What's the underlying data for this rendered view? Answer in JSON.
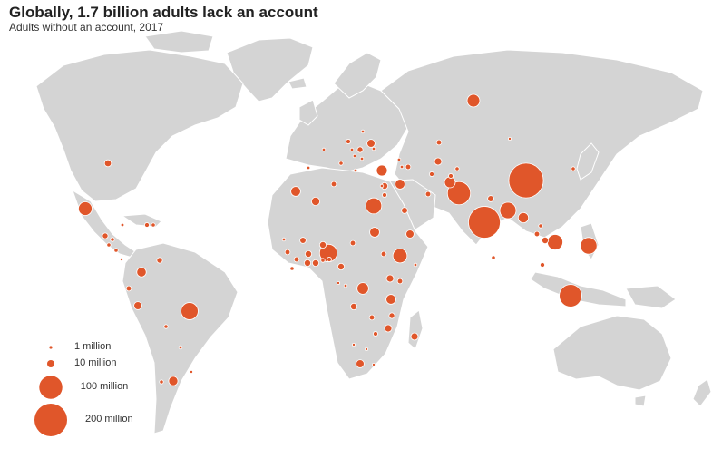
{
  "title": "Globally, 1.7 billion adults lack an account",
  "subtitle": "Adults without an account, 2017",
  "colors": {
    "bubble": "#e0562a",
    "land": "#d4d4d4",
    "bubble_stroke": "#ffffff"
  },
  "legend": [
    {
      "label": "1 million",
      "value": 1
    },
    {
      "label": "10 million",
      "value": 10
    },
    {
      "label": "100 million",
      "value": 100
    },
    {
      "label": "200 million",
      "value": 200
    }
  ],
  "bubbles": [
    {
      "region": "United States",
      "value": 9
    },
    {
      "region": "Mexico",
      "value": 35
    },
    {
      "region": "Guatemala",
      "value": 6
    },
    {
      "region": "Honduras",
      "value": 3
    },
    {
      "region": "El Salvador",
      "value": 3
    },
    {
      "region": "Nicaragua",
      "value": 3
    },
    {
      "region": "Costa Rica",
      "value": 1
    },
    {
      "region": "Cuba",
      "value": 2
    },
    {
      "region": "Haiti",
      "value": 4
    },
    {
      "region": "Dominican Republic",
      "value": 3
    },
    {
      "region": "Colombia",
      "value": 17
    },
    {
      "region": "Venezuela",
      "value": 6
    },
    {
      "region": "Ecuador",
      "value": 5
    },
    {
      "region": "Peru",
      "value": 12
    },
    {
      "region": "Brazil",
      "value": 55
    },
    {
      "region": "Bolivia",
      "value": 3
    },
    {
      "region": "Paraguay",
      "value": 2
    },
    {
      "region": "Chile",
      "value": 3
    },
    {
      "region": "Argentina",
      "value": 16
    },
    {
      "region": "Uruguay",
      "value": 1
    },
    {
      "region": "Morocco",
      "value": 18
    },
    {
      "region": "Algeria",
      "value": 13
    },
    {
      "region": "Tunisia",
      "value": 5
    },
    {
      "region": "Egypt",
      "value": 48
    },
    {
      "region": "Mauritania",
      "value": 2
    },
    {
      "region": "Mali",
      "value": 7
    },
    {
      "region": "Niger",
      "value": 8
    },
    {
      "region": "Senegal",
      "value": 5
    },
    {
      "region": "Guinea",
      "value": 5
    },
    {
      "region": "Sierra Leone",
      "value": 3
    },
    {
      "region": "Burkina Faso",
      "value": 8
    },
    {
      "region": "Cote d'Ivoire",
      "value": 8
    },
    {
      "region": "Ghana",
      "value": 8
    },
    {
      "region": "Togo",
      "value": 3
    },
    {
      "region": "Benin",
      "value": 4
    },
    {
      "region": "Nigeria",
      "value": 58
    },
    {
      "region": "Cameroon",
      "value": 8
    },
    {
      "region": "Chad",
      "value": 5
    },
    {
      "region": "Sudan",
      "value": 18
    },
    {
      "region": "South Sudan",
      "value": 5
    },
    {
      "region": "Ethiopia",
      "value": 38
    },
    {
      "region": "Somalia",
      "value": 2
    },
    {
      "region": "Uganda",
      "value": 10
    },
    {
      "region": "Kenya",
      "value": 5
    },
    {
      "region": "DR Congo",
      "value": 25
    },
    {
      "region": "Congo",
      "value": 2
    },
    {
      "region": "Gabon",
      "value": 1
    },
    {
      "region": "Tanzania",
      "value": 18
    },
    {
      "region": "Angola",
      "value": 8
    },
    {
      "region": "Zambia",
      "value": 5
    },
    {
      "region": "Malawi",
      "value": 6
    },
    {
      "region": "Mozambique",
      "value": 10
    },
    {
      "region": "Zimbabwe",
      "value": 4
    },
    {
      "region": "Madagascar",
      "value": 10
    },
    {
      "region": "Botswana",
      "value": 1
    },
    {
      "region": "Namibia",
      "value": 1
    },
    {
      "region": "South Africa",
      "value": 12
    },
    {
      "region": "Lesotho",
      "value": 1
    },
    {
      "region": "Russia",
      "value": 30
    },
    {
      "region": "Ukraine",
      "value": 12
    },
    {
      "region": "Belarus",
      "value": 2
    },
    {
      "region": "Poland",
      "value": 4
    },
    {
      "region": "Romania",
      "value": 6
    },
    {
      "region": "Bulgaria",
      "value": 2
    },
    {
      "region": "Hungary",
      "value": 2
    },
    {
      "region": "Serbia",
      "value": 2
    },
    {
      "region": "Moldova",
      "value": 2
    },
    {
      "region": "Greece",
      "value": 2
    },
    {
      "region": "Italy",
      "value": 3
    },
    {
      "region": "Spain",
      "value": 2
    },
    {
      "region": "France",
      "value": 2
    },
    {
      "region": "Turkey",
      "value": 22
    },
    {
      "region": "Georgia",
      "value": 2
    },
    {
      "region": "Armenia",
      "value": 2
    },
    {
      "region": "Azerbaijan",
      "value": 5
    },
    {
      "region": "Kazakhstan",
      "value": 5
    },
    {
      "region": "Uzbekistan",
      "value": 10
    },
    {
      "region": "Turkmenistan",
      "value": 4
    },
    {
      "region": "Kyrgyzstan",
      "value": 3
    },
    {
      "region": "Tajikistan",
      "value": 4
    },
    {
      "region": "Iran",
      "value": 5
    },
    {
      "region": "Iraq",
      "value": 18
    },
    {
      "region": "Syria",
      "value": 8
    },
    {
      "region": "Jordan",
      "value": 4
    },
    {
      "region": "Lebanon",
      "value": 2
    },
    {
      "region": "Saudi Arabia",
      "value": 7
    },
    {
      "region": "Yemen",
      "value": 12
    },
    {
      "region": "Afghanistan",
      "value": 22
    },
    {
      "region": "Pakistan",
      "value": 100
    },
    {
      "region": "India",
      "value": 190
    },
    {
      "region": "Nepal",
      "value": 7
    },
    {
      "region": "Bangladesh",
      "value": 50
    },
    {
      "region": "Sri Lanka",
      "value": 3
    },
    {
      "region": "Myanmar",
      "value": 20
    },
    {
      "region": "Thailand",
      "value": 5
    },
    {
      "region": "Laos",
      "value": 3
    },
    {
      "region": "Cambodia",
      "value": 8
    },
    {
      "region": "Vietnam",
      "value": 45
    },
    {
      "region": "Malaysia",
      "value": 4
    },
    {
      "region": "Philippines",
      "value": 52
    },
    {
      "region": "Indonesia",
      "value": 95
    },
    {
      "region": "China",
      "value": 225
    },
    {
      "region": "Mongolia",
      "value": 1
    },
    {
      "region": "Korea",
      "value": 3
    }
  ]
}
